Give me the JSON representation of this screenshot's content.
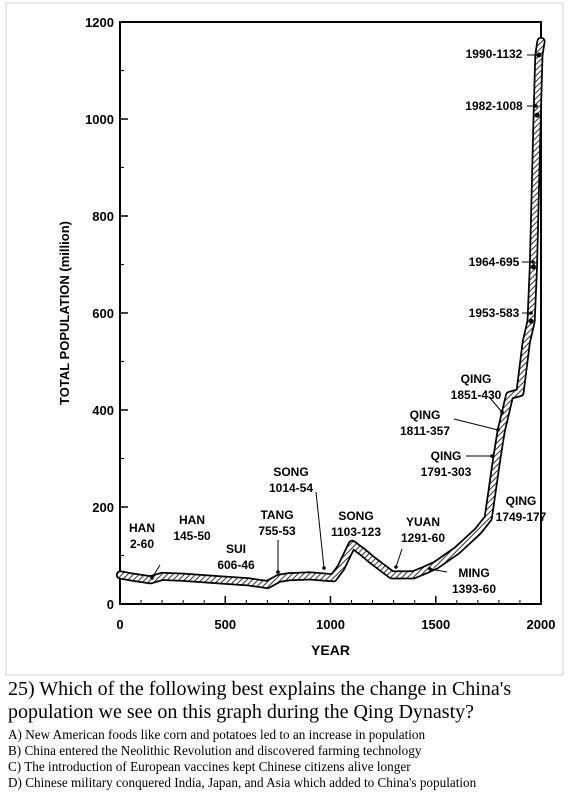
{
  "chart_data": {
    "type": "line",
    "xlabel": "YEAR",
    "ylabel": "TOTAL POPULATION (million)",
    "xlim": [
      0,
      2000
    ],
    "ylim": [
      0,
      1200
    ],
    "x_ticks": [
      "0",
      "500",
      "1000",
      "1500",
      "2000"
    ],
    "y_ticks": [
      "0",
      "200",
      "400",
      "600",
      "800",
      "1000",
      "1200"
    ],
    "series": [
      {
        "x": [
          2,
          50,
          145,
          200,
          300,
          400,
          500,
          606,
          700,
          755,
          800,
          900,
          1014,
          1050,
          1103,
          1150,
          1200,
          1291,
          1393,
          1450,
          1500,
          1600,
          1700,
          1749,
          1791,
          1811,
          1851,
          1900,
          1930,
          1953,
          1964,
          1982,
          1990,
          2000
        ],
        "values": [
          60,
          56,
          50,
          57,
          55,
          52,
          49,
          46,
          40,
          53,
          56,
          58,
          54,
          75,
          123,
          108,
          90,
          60,
          60,
          70,
          80,
          110,
          150,
          177,
          303,
          357,
          430,
          436,
          540,
          583,
          695,
          1008,
          1132,
          1160
        ]
      }
    ],
    "annotations": [
      {
        "dynasty": "HAN",
        "value": "2-60",
        "x": 2,
        "y": 60
      },
      {
        "dynasty": "HAN",
        "value": "145-50",
        "x": 145,
        "y": 50
      },
      {
        "dynasty": "SUI",
        "value": "606-46",
        "x": 606,
        "y": 46
      },
      {
        "dynasty": "TANG",
        "value": "755-53",
        "x": 755,
        "y": 53
      },
      {
        "dynasty": "SONG",
        "value": "1014-54",
        "x": 1014,
        "y": 54
      },
      {
        "dynasty": "SONG",
        "value": "1103-123",
        "x": 1103,
        "y": 123
      },
      {
        "dynasty": "YUAN",
        "value": "1291-60",
        "x": 1291,
        "y": 60
      },
      {
        "dynasty": "MING",
        "value": "1393-60",
        "x": 1393,
        "y": 60
      },
      {
        "dynasty": "QING",
        "value": "1749-177",
        "x": 1749,
        "y": 177
      },
      {
        "dynasty": "QING",
        "value": "1791-303",
        "x": 1791,
        "y": 303
      },
      {
        "dynasty": "QING",
        "value": "1811-357",
        "x": 1811,
        "y": 357
      },
      {
        "dynasty": "QING",
        "value": "1851-430",
        "x": 1851,
        "y": 430
      },
      {
        "dynasty": "",
        "value": "1953-583",
        "x": 1953,
        "y": 583
      },
      {
        "dynasty": "",
        "value": "1964-695",
        "x": 1964,
        "y": 695
      },
      {
        "dynasty": "",
        "value": "1982-1008",
        "x": 1982,
        "y": 1008
      },
      {
        "dynasty": "",
        "value": "1990-1132",
        "x": 1990,
        "y": 1132
      }
    ]
  },
  "question": {
    "stem": "25) Which of the following best explains the change in China's population we see on this graph during the Qing Dynasty?",
    "options": [
      "A) New American foods like corn and potatoes led to an increase in population",
      "B) China entered the Neolithic Revolution and discovered farming technology",
      "C) The introduction of European vaccines kept Chinese citizens alive longer",
      "D) Chinese military conquered India, Japan, and Asia which added to China's population"
    ]
  }
}
